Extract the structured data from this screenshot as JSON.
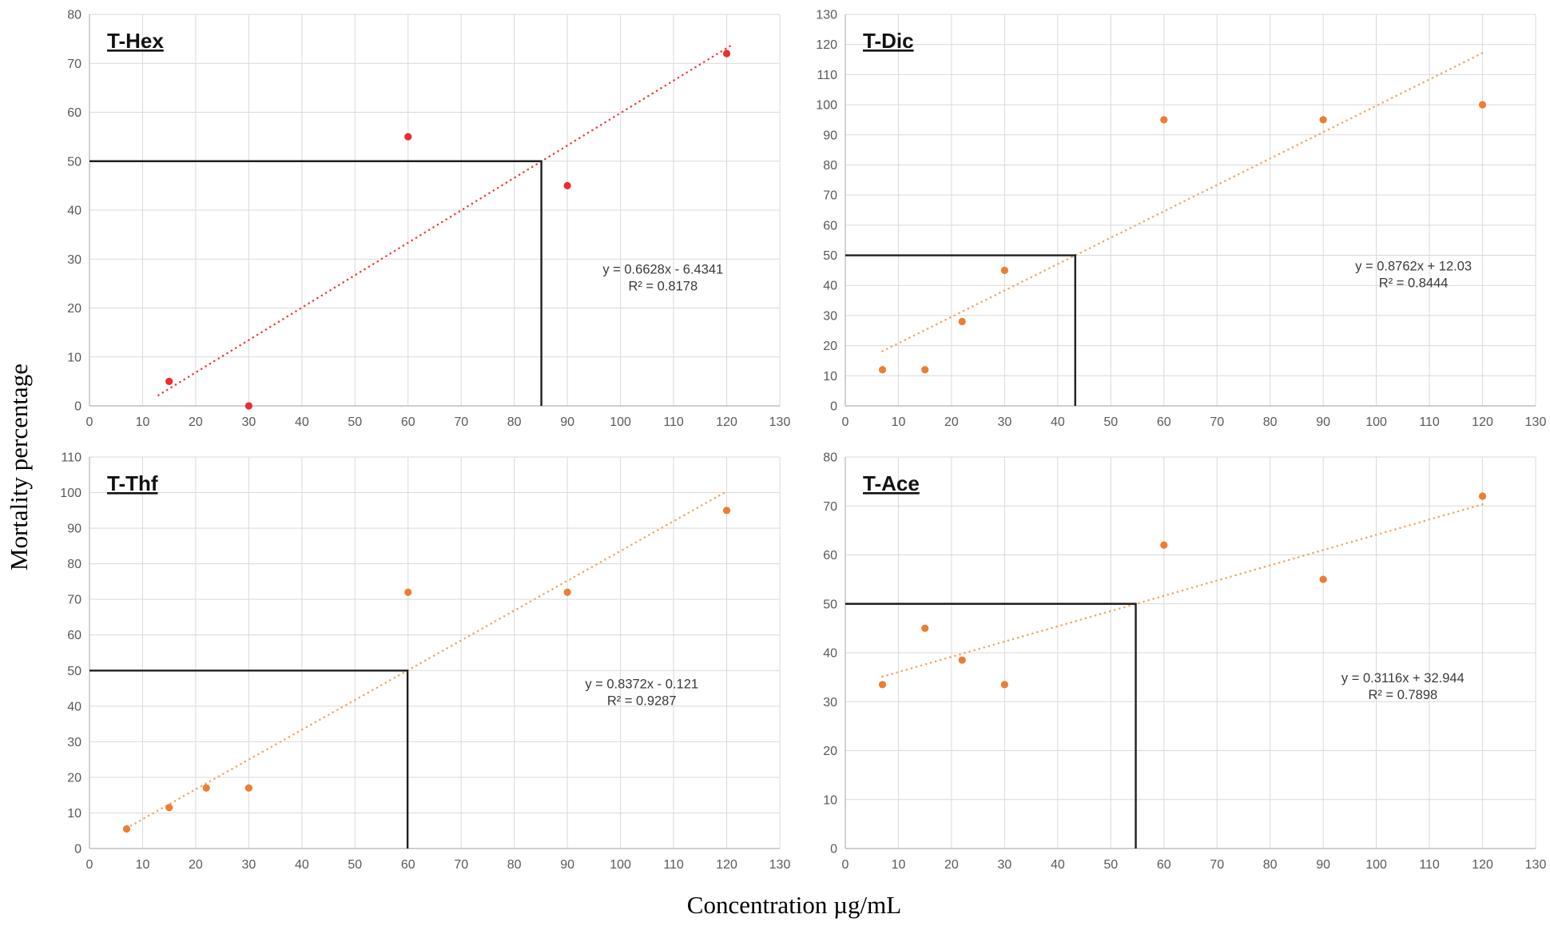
{
  "figure": {
    "shared_ylabel": "Mortality percentage",
    "shared_xlabel": "Concentration µg/mL"
  },
  "style": {
    "grid_color": "#d9d9d9",
    "axis_color": "#bfbfbf",
    "tick_color": "#595959",
    "crosshair_color": "#1f1f1f",
    "equation_color": "#3a3a3a"
  },
  "chart_data": [
    {
      "type": "scatter",
      "title": "T-Hex",
      "grid": true,
      "legend": "none",
      "xlim": [
        0,
        130
      ],
      "ylim": [
        0,
        80
      ],
      "xticks": [
        0,
        10,
        20,
        30,
        40,
        50,
        60,
        70,
        80,
        90,
        100,
        110,
        120,
        130
      ],
      "yticks": [
        0,
        10,
        20,
        30,
        40,
        50,
        60,
        70,
        80
      ],
      "points": [
        [
          15,
          5
        ],
        [
          30,
          0
        ],
        [
          60,
          55
        ],
        [
          90,
          45
        ],
        [
          120,
          72
        ]
      ],
      "point_color": "#ec2c30",
      "trend_color": "#ee3b33",
      "trend": {
        "slope": 0.6628,
        "intercept": -6.4341,
        "x_start": 13,
        "x_end": 121
      },
      "equation": "y = 0.6628x - 6.4341",
      "r2_label": "R² = 0.8178",
      "lc50": {
        "x": 85.1,
        "y": 50
      },
      "annotation_pos": [
        108,
        27
      ]
    },
    {
      "type": "scatter",
      "title": "T-Dic",
      "grid": true,
      "legend": "none",
      "xlim": [
        0,
        130
      ],
      "ylim": [
        0,
        130
      ],
      "xticks": [
        0,
        10,
        20,
        30,
        40,
        50,
        60,
        70,
        80,
        90,
        100,
        110,
        120,
        130
      ],
      "yticks": [
        0,
        10,
        20,
        30,
        40,
        50,
        60,
        70,
        80,
        90,
        100,
        110,
        120,
        130
      ],
      "points": [
        [
          7,
          12
        ],
        [
          15,
          12
        ],
        [
          22,
          28
        ],
        [
          30,
          45
        ],
        [
          60,
          95
        ],
        [
          90,
          95
        ],
        [
          120,
          100
        ]
      ],
      "point_color": "#ED7D31",
      "trend_color": "#f2a45c",
      "trend": {
        "slope": 0.8762,
        "intercept": 12.03,
        "x_start": 7,
        "x_end": 120
      },
      "equation": "y = 0.8762x + 12.03",
      "r2_label": "R² = 0.8444",
      "lc50": {
        "x": 43.3,
        "y": 50
      },
      "annotation_pos": [
        107,
        45
      ]
    },
    {
      "type": "scatter",
      "title": "T-Thf",
      "grid": true,
      "legend": "none",
      "xlim": [
        0,
        130
      ],
      "ylim": [
        0,
        110
      ],
      "xticks": [
        0,
        10,
        20,
        30,
        40,
        50,
        60,
        70,
        80,
        90,
        100,
        110,
        120,
        130
      ],
      "yticks": [
        0,
        10,
        20,
        30,
        40,
        50,
        60,
        70,
        80,
        90,
        100,
        110
      ],
      "points": [
        [
          7,
          5.5
        ],
        [
          15,
          11.5
        ],
        [
          22,
          17
        ],
        [
          30,
          17
        ],
        [
          60,
          72
        ],
        [
          90,
          72
        ],
        [
          120,
          95
        ]
      ],
      "point_color": "#ED7D31",
      "trend_color": "#f2a45c",
      "trend": {
        "slope": 0.8372,
        "intercept": -0.121,
        "x_start": 7,
        "x_end": 120
      },
      "equation": "y = 0.8372x - 0.121",
      "r2_label": "R² = 0.9287",
      "lc50": {
        "x": 59.9,
        "y": 50
      },
      "annotation_pos": [
        104,
        45
      ]
    },
    {
      "type": "scatter",
      "title": "T-Ace",
      "grid": true,
      "legend": "none",
      "xlim": [
        0,
        130
      ],
      "ylim": [
        0,
        80
      ],
      "xticks": [
        0,
        10,
        20,
        30,
        40,
        50,
        60,
        70,
        80,
        90,
        100,
        110,
        120,
        130
      ],
      "yticks": [
        0,
        10,
        20,
        30,
        40,
        50,
        60,
        70,
        80
      ],
      "points": [
        [
          7,
          33.5
        ],
        [
          15,
          45
        ],
        [
          22,
          38.5
        ],
        [
          30,
          33.5
        ],
        [
          60,
          62
        ],
        [
          90,
          55
        ],
        [
          120,
          72
        ]
      ],
      "point_color": "#ED7D31",
      "trend_color": "#f2a45c",
      "trend": {
        "slope": 0.3116,
        "intercept": 32.944,
        "x_start": 7,
        "x_end": 120
      },
      "equation": "y = 0.3116x + 32.944",
      "r2_label": "R² = 0.7898",
      "lc50": {
        "x": 54.7,
        "y": 50
      },
      "annotation_pos": [
        105,
        34
      ]
    }
  ]
}
